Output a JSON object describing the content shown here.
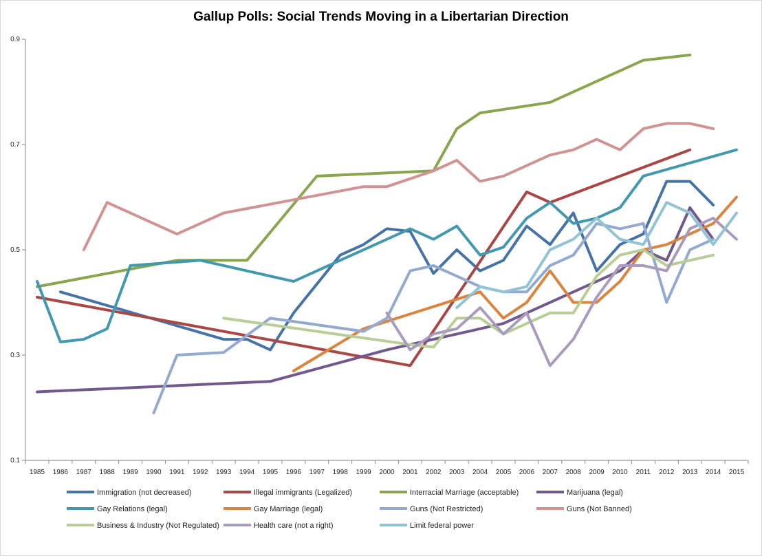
{
  "chart_data": {
    "type": "line",
    "title": "Gallup Polls: Social Trends Moving in a Libertarian Direction",
    "xlabel": "",
    "ylabel": "",
    "ylim": [
      0.1,
      0.9
    ],
    "yticks": [
      "0.1",
      "0.3",
      "0.5",
      "0.7",
      "0.9"
    ],
    "yticks_values": [
      0.1,
      0.3,
      0.5,
      0.7,
      0.9
    ],
    "categories": [
      "1985",
      "1986",
      "1987",
      "1988",
      "1989",
      "1990",
      "1991",
      "1992",
      "1993",
      "1994",
      "1995",
      "1996",
      "1997",
      "1998",
      "1999",
      "2000",
      "2001",
      "2002",
      "2003",
      "2004",
      "2005",
      "2006",
      "2007",
      "2008",
      "2009",
      "2010",
      "2011",
      "2012",
      "2013",
      "2014",
      "2015"
    ],
    "grid": false,
    "legend_position": "bottom",
    "series": [
      {
        "name": "Immigration (not decreased)",
        "color": "#4572a7",
        "values": [
          null,
          0.42,
          null,
          null,
          null,
          null,
          null,
          null,
          0.33,
          0.33,
          0.31,
          0.38,
          0.435,
          0.49,
          0.51,
          0.54,
          0.535,
          0.455,
          0.5,
          0.46,
          0.48,
          0.545,
          0.51,
          0.57,
          0.46,
          0.51,
          0.53,
          0.63,
          0.63,
          0.585,
          null
        ]
      },
      {
        "name": "Illegal immigrants (Legalized)",
        "color": "#aa4643",
        "values": [
          0.41,
          null,
          null,
          null,
          null,
          null,
          null,
          null,
          null,
          null,
          null,
          null,
          null,
          null,
          null,
          null,
          0.28,
          null,
          null,
          null,
          null,
          0.61,
          0.59,
          null,
          null,
          null,
          null,
          null,
          0.69,
          null,
          null
        ]
      },
      {
        "name": "Interracial Marriage (acceptable)",
        "color": "#89a54e",
        "values": [
          0.43,
          null,
          null,
          null,
          null,
          null,
          0.48,
          null,
          null,
          0.48,
          null,
          null,
          0.64,
          null,
          null,
          null,
          null,
          0.65,
          0.73,
          0.76,
          null,
          null,
          0.78,
          null,
          null,
          null,
          0.86,
          null,
          0.87,
          null,
          null
        ]
      },
      {
        "name": "Marijuana (legal)",
        "color": "#71588f",
        "values": [
          0.23,
          null,
          null,
          null,
          null,
          null,
          null,
          null,
          null,
          null,
          0.25,
          null,
          null,
          null,
          null,
          0.31,
          0.32,
          null,
          0.34,
          null,
          0.36,
          null,
          null,
          null,
          0.44,
          0.46,
          0.5,
          0.48,
          0.58,
          0.52,
          null
        ]
      },
      {
        "name": "Gay Relations (legal)",
        "color": "#4198af",
        "values": [
          0.44,
          0.325,
          0.33,
          0.35,
          0.47,
          null,
          null,
          0.48,
          null,
          null,
          null,
          0.44,
          null,
          null,
          null,
          null,
          0.54,
          0.52,
          0.545,
          0.49,
          0.505,
          0.56,
          0.59,
          0.55,
          0.56,
          0.58,
          0.64,
          null,
          null,
          null,
          0.69
        ]
      },
      {
        "name": "Gay Marriage (legal)",
        "color": "#db843d",
        "values": [
          null,
          null,
          null,
          null,
          null,
          null,
          null,
          null,
          null,
          null,
          null,
          0.27,
          null,
          null,
          0.35,
          null,
          null,
          null,
          null,
          0.42,
          0.37,
          0.4,
          0.46,
          0.4,
          0.4,
          0.44,
          0.5,
          0.51,
          0.53,
          0.55,
          0.6
        ]
      },
      {
        "name": "Guns (Not Restricted)",
        "color": "#93a9cf",
        "values": [
          null,
          null,
          null,
          null,
          null,
          0.19,
          0.3,
          null,
          0.305,
          null,
          0.37,
          null,
          null,
          null,
          0.345,
          0.37,
          0.46,
          0.47,
          0.45,
          0.43,
          0.42,
          0.42,
          0.47,
          0.49,
          0.55,
          0.54,
          0.55,
          0.4,
          0.5,
          0.52,
          null
        ]
      },
      {
        "name": "Guns (Not Banned)",
        "color": "#d19392",
        "values": [
          null,
          null,
          0.5,
          0.59,
          null,
          null,
          0.53,
          null,
          0.57,
          null,
          null,
          null,
          null,
          null,
          0.62,
          0.62,
          null,
          0.65,
          0.67,
          0.63,
          0.64,
          0.66,
          0.68,
          0.69,
          0.71,
          0.69,
          0.73,
          0.74,
          0.74,
          0.73,
          null
        ]
      },
      {
        "name": "Business & Industry (Not Regulated)",
        "color": "#b9cd96",
        "values": [
          null,
          null,
          null,
          null,
          null,
          null,
          null,
          null,
          0.37,
          null,
          null,
          null,
          null,
          null,
          null,
          null,
          0.32,
          0.315,
          0.37,
          0.37,
          0.34,
          0.36,
          0.38,
          0.38,
          0.45,
          0.49,
          0.5,
          0.47,
          null,
          0.49,
          null
        ]
      },
      {
        "name": "Health care (not a  right)",
        "color": "#a99bbd",
        "values": [
          null,
          null,
          null,
          null,
          null,
          null,
          null,
          null,
          null,
          null,
          null,
          null,
          null,
          null,
          null,
          0.38,
          0.31,
          0.34,
          0.35,
          0.39,
          0.34,
          0.38,
          0.28,
          0.33,
          0.41,
          0.47,
          0.47,
          0.46,
          0.54,
          0.56,
          0.52
        ]
      },
      {
        "name": "Limit federal power",
        "color": "#92c3d4",
        "values": [
          null,
          null,
          null,
          null,
          null,
          null,
          null,
          null,
          null,
          null,
          null,
          null,
          null,
          null,
          null,
          null,
          null,
          null,
          0.39,
          0.43,
          0.42,
          0.43,
          0.5,
          0.52,
          0.56,
          0.52,
          0.51,
          0.59,
          0.57,
          0.51,
          0.57
        ]
      }
    ]
  }
}
